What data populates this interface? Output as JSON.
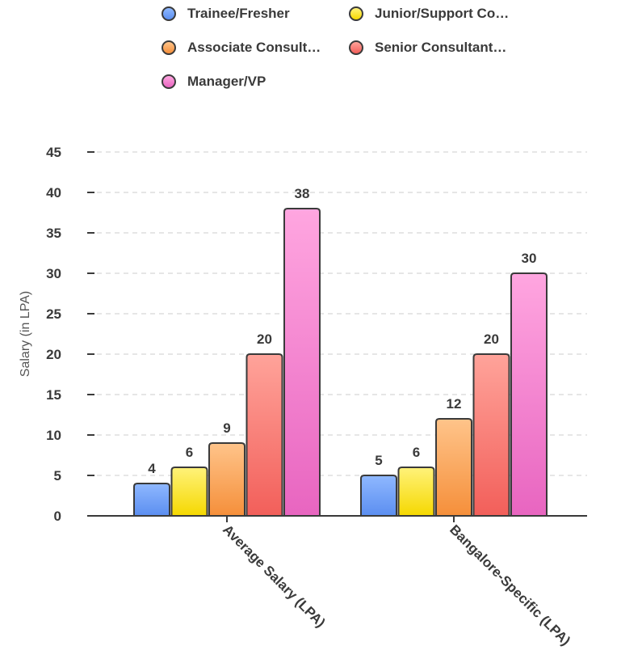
{
  "chart_data": {
    "type": "bar",
    "title": "",
    "xlabel": "",
    "ylabel": "Salary (in LPA)",
    "ylim": [
      0,
      45
    ],
    "yticks": [
      0,
      5,
      10,
      15,
      20,
      25,
      30,
      35,
      40,
      45
    ],
    "grid": true,
    "legend_position": "top",
    "categories": [
      "Average Salary (LPA)",
      "Bangalore-Specific (LPA)"
    ],
    "series": [
      {
        "name": "Trainee/Fresher",
        "legend_label": "Trainee/Fresher",
        "values": [
          4,
          5
        ],
        "color_top": "#8fb8ff",
        "color_bottom": "#5b8ef0"
      },
      {
        "name": "Junior/Support Consultant",
        "legend_label": "Junior/Support Co…",
        "values": [
          6,
          6
        ],
        "color_top": "#fff27a",
        "color_bottom": "#f5d800"
      },
      {
        "name": "Associate Consultant",
        "legend_label": "Associate Consult…",
        "values": [
          9,
          12
        ],
        "color_top": "#ffc48a",
        "color_bottom": "#f58f3a"
      },
      {
        "name": "Senior Consultant",
        "legend_label": "Senior Consultant…",
        "values": [
          20,
          20
        ],
        "color_top": "#ffa39a",
        "color_bottom": "#f25f5a"
      },
      {
        "name": "Manager/VP",
        "legend_label": "Manager/VP",
        "values": [
          38,
          30
        ],
        "color_top": "#ffa6e0",
        "color_bottom": "#e865c0"
      }
    ],
    "data_labels": [
      [
        "4",
        "6",
        "9",
        "20",
        "38"
      ],
      [
        "5",
        "6",
        "12",
        "20",
        "30"
      ]
    ]
  }
}
